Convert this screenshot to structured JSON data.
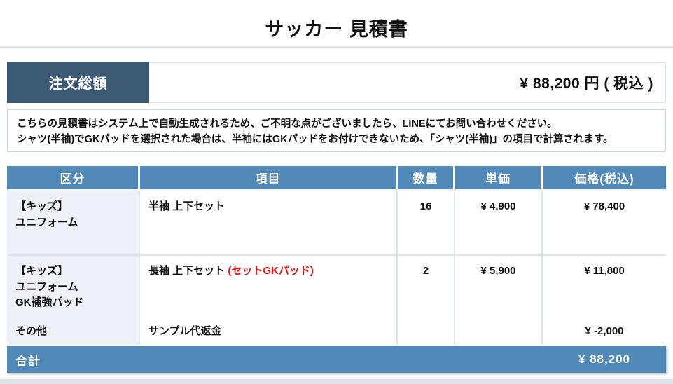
{
  "title": "サッカー 見積書",
  "order_summary": {
    "label": "注文総額",
    "amount": "¥ 88,200 円 ( 税込 )"
  },
  "note": {
    "line1": "こちらの見積書はシステム上で自動生成されるため、ご不明な点がございましたら、LINEにてお問い合わせください。",
    "line2": "シャツ(半袖)でGKパッドを選択された場合は、半袖にはGKパッドをお付けできないため、「シャツ(半袖)」の項目で計算されます。"
  },
  "table": {
    "headers": [
      "区分",
      "項目",
      "数量",
      "単価",
      "価格(税込)"
    ],
    "rows": [
      {
        "category": "【キッズ】\nユニフォーム",
        "item": "半袖 上下セット",
        "item_note": "",
        "qty": "16",
        "unit_price": "¥ 4,900",
        "price": "¥ 78,400"
      },
      {
        "category": "【キッズ】\nユニフォーム\nGK補強パッド",
        "item": "長袖 上下セット ",
        "item_note": "(セットGKパッド)",
        "qty": "2",
        "unit_price": "¥ 5,900",
        "price": "¥ 11,800"
      },
      {
        "category": "その他",
        "item": "サンプル代返金",
        "item_note": "",
        "qty": "",
        "unit_price": "",
        "price": "¥ -2,000"
      }
    ],
    "total": {
      "label": "合計",
      "value": "¥ 88,200"
    }
  },
  "colors": {
    "dark_header_box": "#3d5a74",
    "table_header_blue": "#5189b8",
    "category_cell_bg": "#edf1f7",
    "light_border": "#dfe4ea",
    "strong_border": "#2e6da4",
    "note_red": "#ee1111",
    "divider_gray": "#dde2e8"
  }
}
